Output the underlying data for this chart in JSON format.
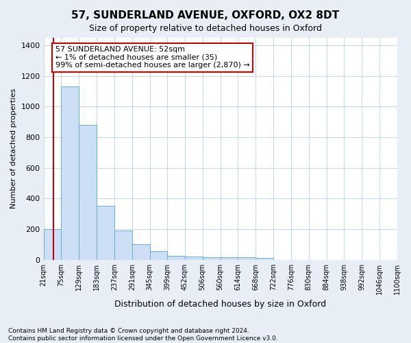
{
  "title": "57, SUNDERLAND AVENUE, OXFORD, OX2 8DT",
  "subtitle": "Size of property relative to detached houses in Oxford",
  "xlabel": "Distribution of detached houses by size in Oxford",
  "ylabel": "Number of detached properties",
  "footnote1": "Contains HM Land Registry data © Crown copyright and database right 2024.",
  "footnote2": "Contains public sector information licensed under the Open Government Licence v3.0.",
  "annotation_line1": "57 SUNDERLAND AVENUE: 52sqm",
  "annotation_line2": "← 1% of detached houses are smaller (35)",
  "annotation_line3": "99% of semi-detached houses are larger (2,870) →",
  "bar_edges": [
    21,
    75,
    129,
    183,
    237,
    291,
    345,
    399,
    452,
    506,
    560,
    614,
    668,
    722,
    776,
    830,
    884,
    938,
    992,
    1046,
    1100
  ],
  "bar_heights": [
    200,
    1130,
    880,
    350,
    190,
    100,
    55,
    25,
    20,
    18,
    18,
    15,
    12,
    0,
    0,
    0,
    0,
    0,
    0,
    0
  ],
  "bar_color": "#ccdff5",
  "bar_edge_color": "#6aaed6",
  "red_line_x": 52,
  "xlim_left": 21,
  "xlim_right": 1100,
  "ylim": [
    0,
    1450
  ],
  "yticks": [
    0,
    200,
    400,
    600,
    800,
    1000,
    1200,
    1400
  ],
  "bg_color": "#e8eef5",
  "plot_bg_color": "#ffffff",
  "annotation_box_facecolor": "#ffffff",
  "annotation_box_edgecolor": "#cc0000",
  "red_line_color": "#cc0000",
  "grid_color": "#c8d8e8",
  "title_fontsize": 11,
  "subtitle_fontsize": 9,
  "ylabel_fontsize": 8,
  "xlabel_fontsize": 9,
  "ytick_fontsize": 8,
  "xtick_fontsize": 7,
  "footnote_fontsize": 6.5
}
